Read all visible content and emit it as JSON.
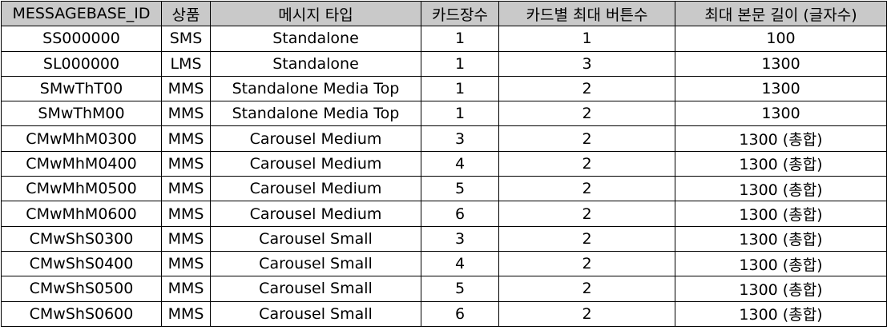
{
  "table": {
    "headers": [
      "MESSAGEBASE_ID",
      "상품",
      "메시지 타입",
      "카드장수",
      "카드별 최대 버튼수",
      "최대 본문 길이 (글자수)"
    ],
    "rows": [
      [
        "SS000000",
        "SMS",
        "Standalone",
        "1",
        "1",
        "100"
      ],
      [
        "SL000000",
        "LMS",
        "Standalone",
        "1",
        "3",
        "1300"
      ],
      [
        "SMwThT00",
        "MMS",
        "Standalone Media Top",
        "1",
        "2",
        "1300"
      ],
      [
        "SMwThM00",
        "MMS",
        "Standalone Media Top",
        "1",
        "2",
        "1300"
      ],
      [
        "CMwMhM0300",
        "MMS",
        "Carousel Medium",
        "3",
        "2",
        "1300 (총합)"
      ],
      [
        "CMwMhM0400",
        "MMS",
        "Carousel Medium",
        "4",
        "2",
        "1300 (총합)"
      ],
      [
        "CMwMhM0500",
        "MMS",
        "Carousel Medium",
        "5",
        "2",
        "1300 (총합)"
      ],
      [
        "CMwMhM0600",
        "MMS",
        "Carousel Medium",
        "6",
        "2",
        "1300 (총합)"
      ],
      [
        "CMwShS0300",
        "MMS",
        "Carousel Small",
        "3",
        "2",
        "1300 (총합)"
      ],
      [
        "CMwShS0400",
        "MMS",
        "Carousel Small",
        "4",
        "2",
        "1300 (총합)"
      ],
      [
        "CMwShS0500",
        "MMS",
        "Carousel Small",
        "5",
        "2",
        "1300 (총합)"
      ],
      [
        "CMwShS0600",
        "MMS",
        "Carousel Small",
        "6",
        "2",
        "1300 (총합)"
      ]
    ]
  },
  "colors": {
    "header_background": "#c9c9c9",
    "cell_background": "#ffffff",
    "border": "#000000",
    "text": "#000000"
  }
}
